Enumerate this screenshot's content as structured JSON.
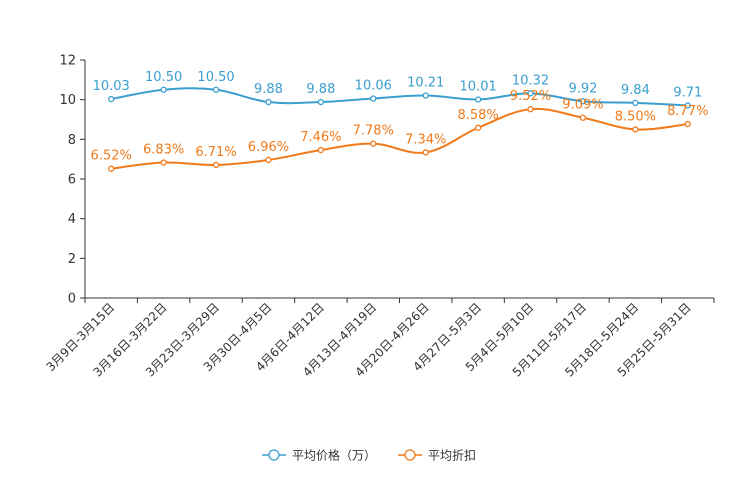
{
  "chart_data": {
    "type": "line",
    "title": "",
    "xlabel": "",
    "ylabel": "",
    "ylim": [
      0,
      12
    ],
    "yticks": [
      0,
      2,
      4,
      6,
      8,
      10,
      12
    ],
    "grid": false,
    "legend_position": "bottom-center",
    "categories": [
      "3月9日-3月15日",
      "3月16日-3月22日",
      "3月23日-3月29日",
      "3月30日-4月5日",
      "4月6日-4月12日",
      "4月13日-4月19日",
      "4月20日-4月26日",
      "4月27日-5月3日",
      "5月4日-5月10日",
      "5月11日-5月17日",
      "5月18日-5月24日",
      "5月25日-5月31日"
    ],
    "series": [
      {
        "name": "平均价格（万）",
        "color": "#3a9fcf",
        "values": [
          10.03,
          10.5,
          10.5,
          9.88,
          9.88,
          10.06,
          10.21,
          10.01,
          10.32,
          9.92,
          9.84,
          9.71
        ],
        "labels": [
          "10.03",
          "10.50",
          "10.50",
          "9.88",
          "9.88",
          "10.06",
          "10.21",
          "10.01",
          "10.32",
          "9.92",
          "9.84",
          "9.71"
        ]
      },
      {
        "name": "平均折扣",
        "color": "#f07a1a",
        "values": [
          6.52,
          6.83,
          6.71,
          6.96,
          7.46,
          7.78,
          7.34,
          8.58,
          9.52,
          9.09,
          8.5,
          8.77
        ],
        "labels": [
          "6.52%",
          "6.83%",
          "6.71%",
          "6.96%",
          "7.46%",
          "7.78%",
          "7.34%",
          "8.58%",
          "9.52%",
          "9.09%",
          "8.50%",
          "8.77%"
        ]
      }
    ]
  }
}
